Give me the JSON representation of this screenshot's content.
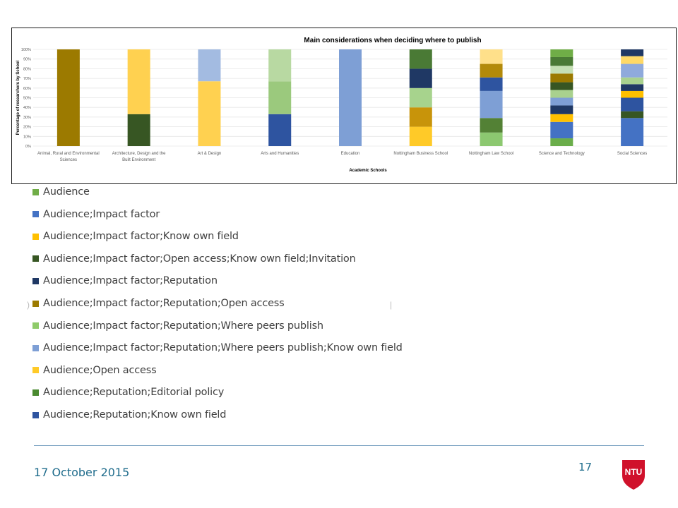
{
  "chart_data": {
    "type": "bar",
    "stacked": true,
    "title": "Main considerations when deciding where to publish",
    "xlabel": "Academic Schools",
    "ylabel": "Percentage of researchers by School",
    "ylim": [
      0,
      100
    ],
    "yticks": [
      "0%",
      "10%",
      "20%",
      "30%",
      "40%",
      "50%",
      "60%",
      "70%",
      "80%",
      "90%",
      "100%"
    ],
    "grid": true,
    "legend_position": "bottom",
    "categories": [
      "Animal, Rural and Environmental Sciences",
      "Architecture, Design and the Built Environment",
      "Art & Design",
      "Arts and Humanities",
      "Education",
      "Nottingham Business School",
      "Nottingham Law School",
      "Science and Technology",
      "Social Sciences"
    ],
    "category_lines": [
      [
        "Animal, Rural and Environmental",
        "Sciences"
      ],
      [
        "Architecture, Design and the",
        "Built Environment"
      ],
      [
        "Art & Design"
      ],
      [
        "Arts and Humanities"
      ],
      [
        "Education"
      ],
      [
        "Nottingham Business School"
      ],
      [
        "Nottingham Law School"
      ],
      [
        "Science and Technology"
      ],
      [
        "Social Sciences"
      ]
    ],
    "stacks": [
      [
        {
          "color": "#9c7a00",
          "value": 100
        }
      ],
      [
        {
          "color": "#375623",
          "value": 33
        },
        {
          "color": "#ffd150",
          "value": 67
        }
      ],
      [
        {
          "color": "#ffd150",
          "value": 67
        },
        {
          "color": "#a3bbe1",
          "value": 33
        }
      ],
      [
        {
          "color": "#2e54a0",
          "value": 33
        },
        {
          "color": "#9bc97d",
          "value": 34
        },
        {
          "color": "#b8d9a2",
          "value": 33
        }
      ],
      [
        {
          "color": "#7e9fd5",
          "value": 100
        }
      ],
      [
        {
          "color": "#ffca28",
          "value": 20
        },
        {
          "color": "#c8940a",
          "value": 20
        },
        {
          "color": "#a7d38d",
          "value": 20
        },
        {
          "color": "#1f3864",
          "value": 20
        },
        {
          "color": "#4a7a35",
          "value": 20
        }
      ],
      [
        {
          "color": "#8cc870",
          "value": 14
        },
        {
          "color": "#538135",
          "value": 15
        },
        {
          "color": "#7e9fd5",
          "value": 28
        },
        {
          "color": "#2e54a0",
          "value": 14
        },
        {
          "color": "#b38a0a",
          "value": 14
        },
        {
          "color": "#ffe08a",
          "value": 15
        }
      ],
      [
        {
          "color": "#6aad4a",
          "value": 8
        },
        {
          "color": "#4472c4",
          "value": 17
        },
        {
          "color": "#ffc000",
          "value": 8
        },
        {
          "color": "#1f3864",
          "value": 9
        },
        {
          "color": "#7e9fd5",
          "value": 8
        },
        {
          "color": "#a9d18e",
          "value": 8
        },
        {
          "color": "#375623",
          "value": 8
        },
        {
          "color": "#9c7a00",
          "value": 9
        },
        {
          "color": "#c5e0b4",
          "value": 8
        },
        {
          "color": "#4a7a35",
          "value": 9
        },
        {
          "color": "#70ad47",
          "value": 8
        }
      ],
      [
        {
          "color": "#4472c4",
          "value": 29
        },
        {
          "color": "#375623",
          "value": 7
        },
        {
          "color": "#2e54a0",
          "value": 14
        },
        {
          "color": "#ffc000",
          "value": 7
        },
        {
          "color": "#203864",
          "value": 7
        },
        {
          "color": "#a9d18e",
          "value": 7
        },
        {
          "color": "#8faadc",
          "value": 14
        },
        {
          "color": "#ffd966",
          "value": 8
        },
        {
          "color": "#1f3864",
          "value": 7
        }
      ]
    ]
  },
  "legend": [
    {
      "label": "Audience",
      "color": "#70ad47"
    },
    {
      "label": "Audience;Impact factor",
      "color": "#4472c4"
    },
    {
      "label": "Audience;Impact factor;Know own field",
      "color": "#ffc000"
    },
    {
      "label": "Audience;Impact factor;Open access;Know own field;Invitation",
      "color": "#375623"
    },
    {
      "label": "Audience;Impact factor;Reputation",
      "color": "#1f3864"
    },
    {
      "label": "Audience;Impact factor;Reputation;Open access",
      "color": "#9c7a00"
    },
    {
      "label": "Audience;Impact factor;Reputation;Where peers publish",
      "color": "#8fcb6a"
    },
    {
      "label": "Audience;Impact factor;Reputation;Where peers publish;Know own field",
      "color": "#7e9fd5"
    },
    {
      "label": "Audience;Open access",
      "color": "#ffca28"
    },
    {
      "label": "Audience;Reputation;Editorial policy",
      "color": "#4a8a30"
    },
    {
      "label": "Audience;Reputation;Know own field",
      "color": "#2e54a0"
    }
  ],
  "footer": {
    "date": "17 October 2015",
    "page_number": "17",
    "logo_text": "NTU",
    "logo_color": "#d0112b",
    "rule_color": "#7fa6c4"
  }
}
